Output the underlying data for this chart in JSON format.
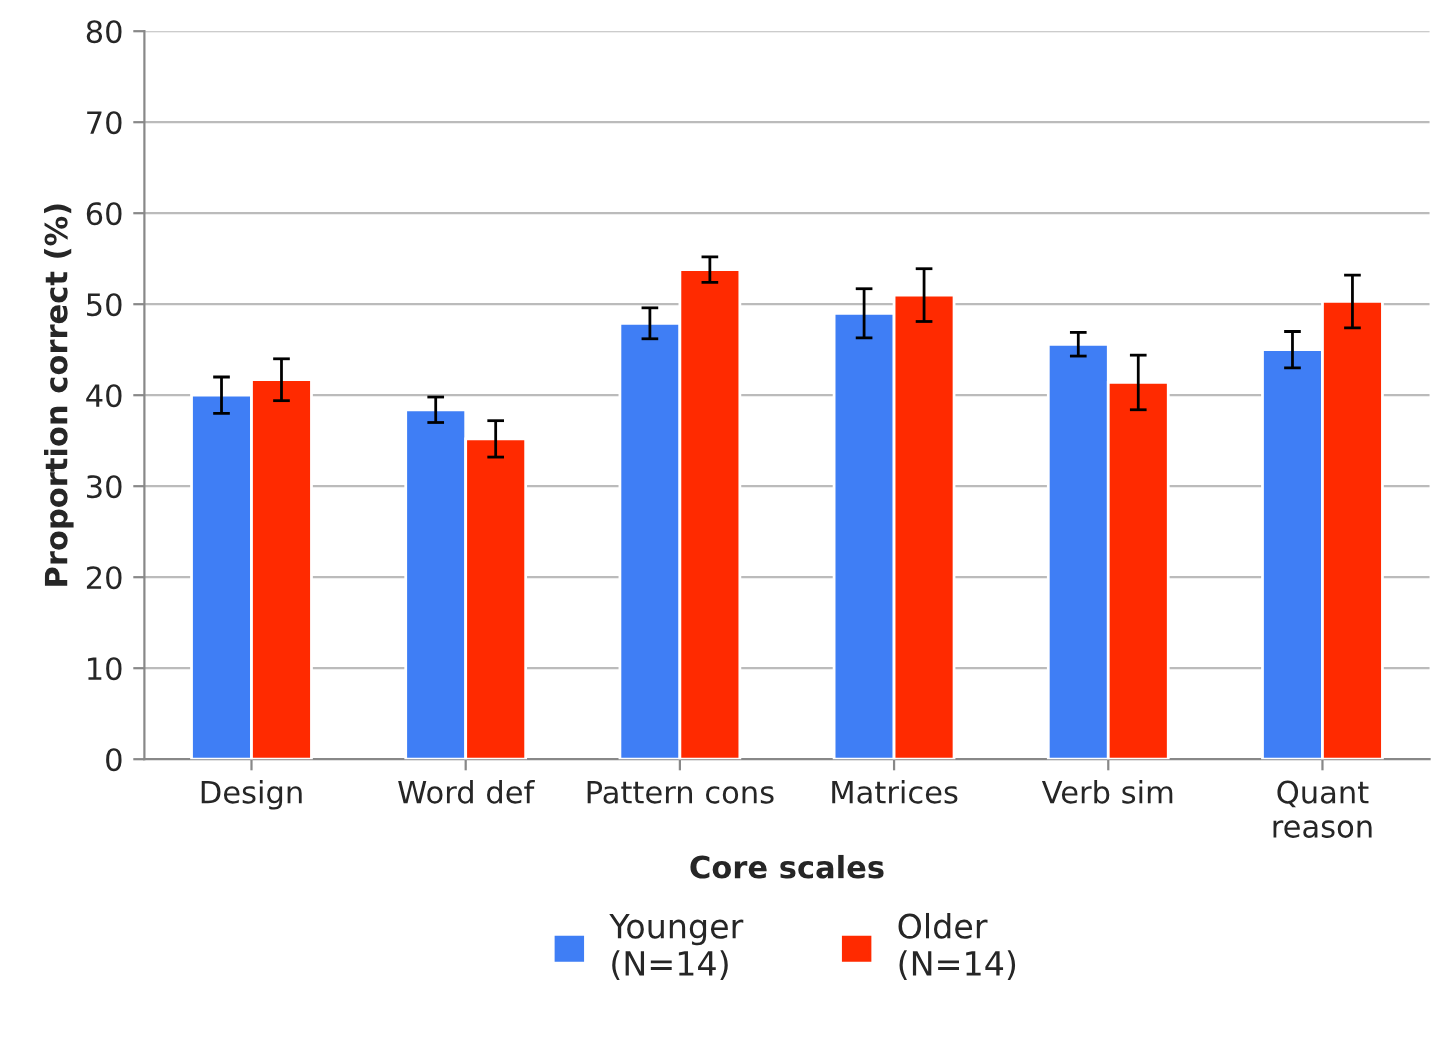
{
  "chart_data": {
    "type": "bar",
    "categories": [
      "Design",
      "Word def",
      "Pattern cons",
      "Matrices",
      "Verb sim",
      "Quant\nreason"
    ],
    "series": [
      {
        "name": "Younger\n(N=14)",
        "color": "#3f7ef5",
        "values": [
          40.0,
          38.4,
          47.9,
          49.0,
          45.6,
          45.0
        ],
        "errors": [
          2.0,
          1.4,
          1.7,
          2.7,
          1.3,
          2.0
        ]
      },
      {
        "name": "Older\n(N=14)",
        "color": "#ff2a00",
        "values": [
          41.7,
          35.2,
          53.8,
          51.0,
          41.4,
          50.3
        ],
        "errors": [
          2.3,
          2.0,
          1.4,
          2.9,
          3.0,
          2.9
        ]
      }
    ],
    "xlabel": "Core scales",
    "ylabel": "Proportion correct (%)",
    "ylim": [
      0,
      80
    ],
    "yticks": [
      0,
      10,
      20,
      30,
      40,
      50,
      60,
      70,
      80
    ],
    "grid": "y",
    "legend": "bottom"
  }
}
